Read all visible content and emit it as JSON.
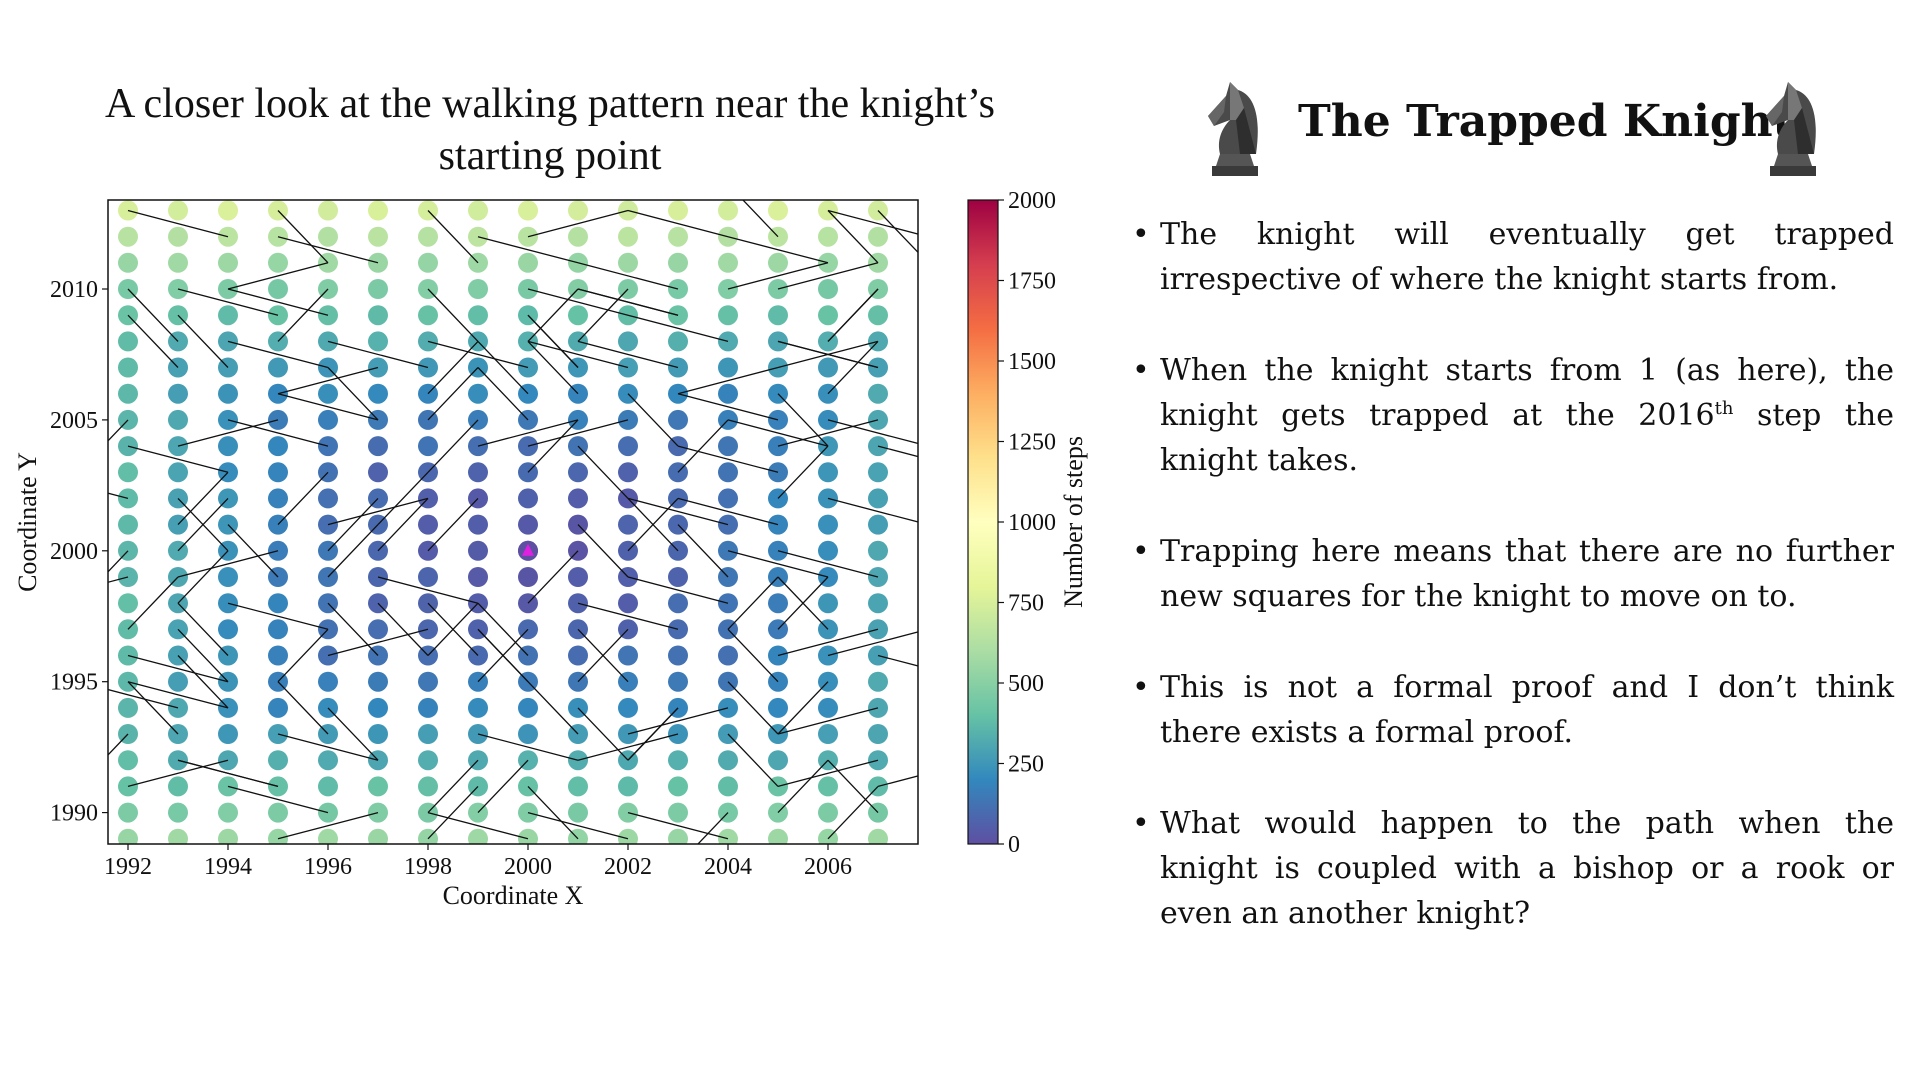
{
  "slide": {
    "title": "The Trapped Knight",
    "icons": [
      "chess-knight-icon",
      "chess-knight-icon"
    ],
    "bullets": [
      {
        "text": "The knight will eventually get trapped irrespective of  where the knight starts from."
      },
      {
        "pre": "When the knight starts from 1 (as here), the knight gets trapped at the 2016",
        "sup": "th",
        "post": " step the knight takes."
      },
      {
        "text": "Trapping here means that there are no further new squares for the knight to move on to."
      },
      {
        "text": "This is not a formal proof and I don’t think there exists a formal proof."
      },
      {
        "text": "What would happen to the path when the knight is coupled with a bishop or a rook or even an another knight?"
      }
    ]
  },
  "chart_data": {
    "type": "scatter",
    "title": "A closer look at the walking pattern near the knight’s starting point",
    "xlabel": "Coordinate X",
    "ylabel": "Coordinate Y",
    "xlim": [
      1991.6,
      2007.8
    ],
    "ylim": [
      1988.8,
      2013.4
    ],
    "xticks": [
      1992,
      1994,
      1996,
      1998,
      2000,
      2002,
      2004,
      2006
    ],
    "yticks": [
      1990,
      1995,
      2000,
      2005,
      2010
    ],
    "grid_x": [
      1992,
      2007
    ],
    "grid_y": [
      1989,
      2013
    ],
    "start_point": [
      2000,
      2000
    ],
    "colorbar": {
      "label": "Number of steps",
      "range": [
        0,
        2000
      ],
      "ticks": [
        0,
        250,
        500,
        750,
        1000,
        1250,
        1500,
        1750,
        2000
      ],
      "colormap": "Spectral_r"
    },
    "colors": {
      "start_marker": "#e020e0",
      "path_line": "#111111",
      "cmap_stops": [
        "#5e4fa2",
        "#3288bd",
        "#66c2a5",
        "#abdda4",
        "#e6f598",
        "#ffffbf",
        "#fee08b",
        "#fdae61",
        "#f46d43",
        "#d53e4f",
        "#9e0142"
      ]
    }
  }
}
